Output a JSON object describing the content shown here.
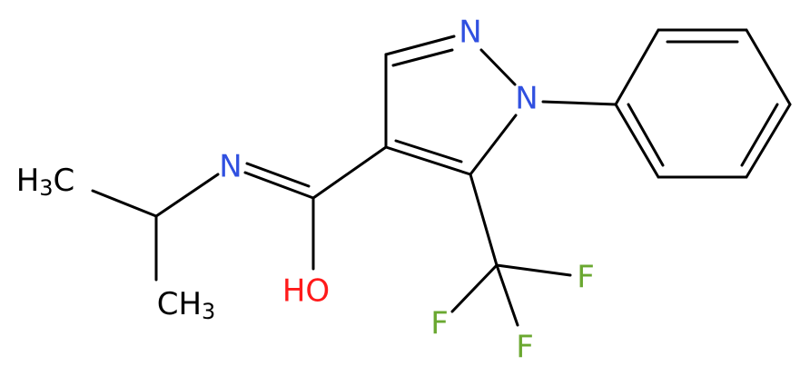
{
  "atoms": {
    "n_ring_top": "N",
    "n_ring_phenyl": "N",
    "n_imine": "N",
    "hydroxyl": "HO",
    "fluorine_right": "F",
    "fluorine_left": "F",
    "fluorine_bottom": "F",
    "methyl_left": {
      "h": "H",
      "count": "3",
      "c": "C"
    },
    "methyl_bottom": {
      "ch": "CH",
      "count": "3"
    }
  }
}
